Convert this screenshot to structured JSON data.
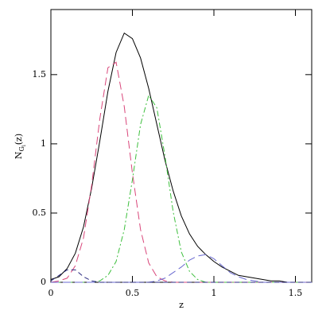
{
  "chart_data": {
    "type": "line",
    "xlabel": "z",
    "ylabel": {
      "main": "N",
      "sub": "G",
      "subsub": "i",
      "tail": "(z)"
    },
    "x": [
      0,
      0.05,
      0.1,
      0.15,
      0.2,
      0.25,
      0.3,
      0.35,
      0.4,
      0.45,
      0.5,
      0.55,
      0.6,
      0.65,
      0.7,
      0.75,
      0.8,
      0.85,
      0.9,
      0.95,
      1,
      1.05,
      1.1,
      1.15,
      1.2,
      1.25,
      1.3,
      1.35,
      1.4,
      1.45,
      1.5,
      1.55,
      1.6
    ],
    "series": [
      {
        "color": "#000000",
        "dash": "none",
        "values": [
          0.02,
          0.04,
          0.1,
          0.21,
          0.4,
          0.68,
          1.02,
          1.38,
          1.66,
          1.8,
          1.76,
          1.62,
          1.4,
          1.14,
          0.88,
          0.66,
          0.48,
          0.35,
          0.26,
          0.2,
          0.15,
          0.11,
          0.08,
          0.05,
          0.04,
          0.03,
          0.02,
          0.01,
          0.01,
          0,
          0,
          0,
          0
        ]
      },
      {
        "color": "#d9467a",
        "dash": "10,5",
        "values": [
          0,
          0.01,
          0.03,
          0.12,
          0.32,
          0.7,
          1.18,
          1.55,
          1.59,
          1.27,
          0.79,
          0.38,
          0.14,
          0.04,
          0.01,
          0,
          0,
          0,
          0,
          0,
          0,
          0,
          0,
          0,
          0,
          0,
          0,
          0,
          0,
          0,
          0,
          0,
          0
        ]
      },
      {
        "color": "#3cbf3c",
        "dash": "7,3,2,3",
        "values": [
          0,
          0,
          0,
          0,
          0,
          0,
          0.01,
          0.05,
          0.15,
          0.38,
          0.74,
          1.14,
          1.35,
          1.26,
          0.91,
          0.51,
          0.22,
          0.08,
          0.02,
          0,
          0,
          0,
          0,
          0,
          0,
          0,
          0,
          0,
          0,
          0,
          0,
          0,
          0
        ]
      },
      {
        "color": "#6a6ad0",
        "dash": "10,5",
        "values": [
          0,
          0,
          0,
          0,
          0,
          0,
          0,
          0,
          0,
          0,
          0,
          0,
          0,
          0.01,
          0.03,
          0.07,
          0.11,
          0.16,
          0.19,
          0.2,
          0.17,
          0.12,
          0.07,
          0.04,
          0.02,
          0.01,
          0,
          0,
          0,
          0,
          0,
          0,
          0
        ]
      },
      {
        "color": "#2a2a80",
        "dash": "6,4",
        "values": [
          0.01,
          0.05,
          0.09,
          0.09,
          0.04,
          0.01,
          0,
          0,
          0,
          0,
          0,
          0,
          0,
          0,
          0,
          0,
          0,
          0,
          0,
          0,
          0,
          0,
          0,
          0,
          0,
          0,
          0,
          0,
          0,
          0,
          0,
          0,
          0
        ]
      }
    ],
    "xlim": [
      0,
      1.6
    ],
    "xticks": [
      0,
      0.5,
      1,
      1.5
    ],
    "ylim": [
      0,
      1.97
    ],
    "yticks": [
      0,
      0.5,
      1,
      1.5
    ]
  }
}
